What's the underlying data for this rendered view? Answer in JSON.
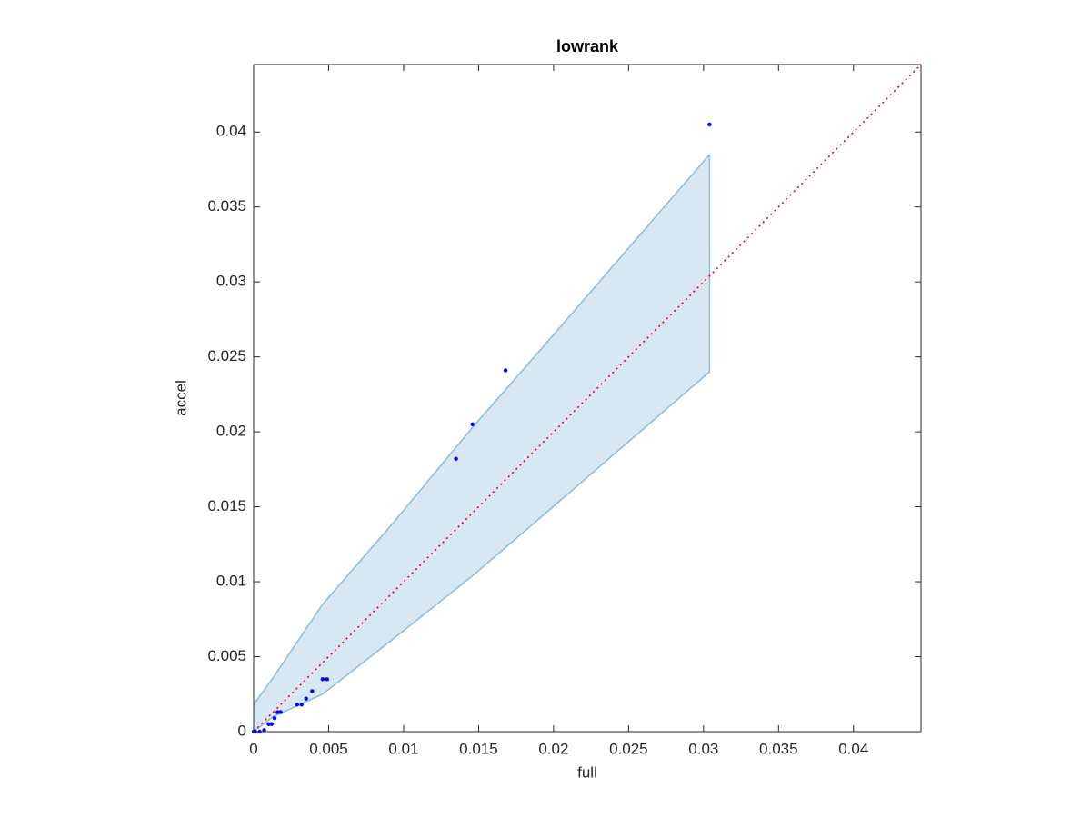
{
  "chart_data": {
    "type": "scatter",
    "title": "lowrank",
    "x_label": "full",
    "y_label": "accel",
    "xlim": [
      0,
      0.0445
    ],
    "ylim": [
      0,
      0.0445
    ],
    "xticks": [
      0,
      0.005,
      0.01,
      0.015,
      0.02,
      0.025,
      0.03,
      0.035,
      0.04
    ],
    "yticks": [
      0,
      0.005,
      0.01,
      0.015,
      0.02,
      0.025,
      0.03,
      0.035,
      0.04
    ],
    "grid": false,
    "series": [
      {
        "color": "#0000ff",
        "x": [
          0.0304,
          0.0168,
          0.0146,
          0.0135,
          0.0046,
          0.0049,
          0.0039,
          0.0035,
          0.0032,
          0.0029,
          0.0018,
          0.0016,
          0.0014,
          0.0012,
          0.001,
          0.0007,
          0.0004,
          0.0001,
          0
        ],
        "values": [
          0.0405,
          0.0241,
          0.0205,
          0.0182,
          0.0035,
          0.0035,
          0.0027,
          0.0022,
          0.0018,
          0.0018,
          0.0013,
          0.0013,
          0.0009,
          0.0005,
          0.0005,
          0.0001,
          0,
          0,
          0
        ]
      }
    ],
    "band": {
      "fill": "#d7e7f4",
      "edge_color": "#88bde0",
      "x": [
        0,
        0.0013,
        0.0046,
        0.0092,
        0.0146,
        0.0195,
        0.0304
      ],
      "upper": [
        0.0018,
        0.0036,
        0.0085,
        0.0138,
        0.0203,
        0.0259,
        0.0385
      ],
      "lower": [
        0,
        0.001,
        0.0025,
        0.0061,
        0.0104,
        0.0146,
        0.024
      ]
    },
    "reference_line": {
      "x": [
        0,
        0.0445
      ],
      "y": [
        0,
        0.0445
      ],
      "color": "#ff0000"
    }
  }
}
